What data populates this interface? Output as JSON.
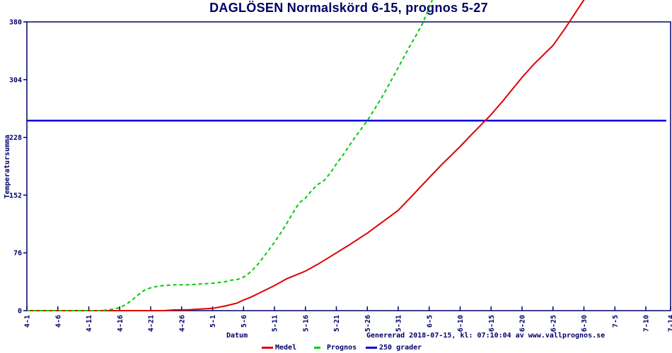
{
  "colors": {
    "navy": "#000066",
    "red": "#dd0000",
    "green": "#00cc00",
    "blue": "#0000dd",
    "background": "#ffffff"
  },
  "footer": {
    "generated": "Genererad 2018-07-15, kl: 07:10:04 av www.vallprognos.se"
  },
  "chart_data": {
    "type": "line",
    "title": "DAGLÖSEN Normalskörd 6-15, prognos 5-27",
    "xlabel": "Datum",
    "ylabel": "Temperatursumma",
    "x_axis_unit": "month-day, April 1 to July 14",
    "x_tick_labels": [
      "4-1",
      "4-6",
      "4-11",
      "4-16",
      "4-21",
      "4-26",
      "5-1",
      "5-6",
      "5-11",
      "5-16",
      "5-21",
      "5-26",
      "5-31",
      "6-5",
      "6-10",
      "6-15",
      "6-20",
      "6-25",
      "6-30",
      "7-5",
      "7-10",
      "7-14"
    ],
    "x_tick_days": [
      0,
      5,
      10,
      15,
      20,
      25,
      30,
      35,
      40,
      45,
      50,
      55,
      60,
      65,
      70,
      75,
      80,
      85,
      90,
      95,
      100,
      104
    ],
    "y_ticks": [
      0,
      76,
      152,
      228,
      304,
      380
    ],
    "ylim": [
      0,
      380
    ],
    "xlim_days": [
      0,
      104
    ],
    "grid": false,
    "legend_position": "bottom-center",
    "series": [
      {
        "name": "Medel",
        "color_key": "red",
        "style": "solid",
        "points": [
          [
            0,
            0
          ],
          [
            5,
            0
          ],
          [
            10,
            0
          ],
          [
            15,
            0
          ],
          [
            20,
            0
          ],
          [
            22,
            0
          ],
          [
            24,
            1
          ],
          [
            26,
            1
          ],
          [
            28,
            2
          ],
          [
            30,
            3
          ],
          [
            32,
            6
          ],
          [
            34,
            10
          ],
          [
            35,
            14
          ],
          [
            36,
            17
          ],
          [
            38,
            25
          ],
          [
            40,
            33
          ],
          [
            42,
            42
          ],
          [
            45,
            52
          ],
          [
            47,
            61
          ],
          [
            50,
            76
          ],
          [
            52,
            86
          ],
          [
            55,
            102
          ],
          [
            57,
            114
          ],
          [
            60,
            132
          ],
          [
            62,
            149
          ],
          [
            65,
            175
          ],
          [
            67,
            192
          ],
          [
            70,
            216
          ],
          [
            72,
            233
          ],
          [
            75,
            258
          ],
          [
            77,
            277
          ],
          [
            80,
            307
          ],
          [
            82,
            325
          ],
          [
            85,
            349
          ],
          [
            87,
            372
          ],
          [
            90,
            409
          ]
        ]
      },
      {
        "name": "Prognos",
        "color_key": "green",
        "style": "dashed",
        "points": [
          [
            0,
            0
          ],
          [
            5,
            0
          ],
          [
            10,
            0
          ],
          [
            12,
            0
          ],
          [
            13,
            1
          ],
          [
            14,
            2
          ],
          [
            15,
            4
          ],
          [
            16,
            8
          ],
          [
            17,
            14
          ],
          [
            18,
            21
          ],
          [
            19,
            27
          ],
          [
            20,
            30
          ],
          [
            21,
            32
          ],
          [
            22,
            33
          ],
          [
            24,
            34
          ],
          [
            26,
            34
          ],
          [
            28,
            35
          ],
          [
            30,
            36
          ],
          [
            31,
            37
          ],
          [
            32,
            38
          ],
          [
            33,
            40
          ],
          [
            34,
            41
          ],
          [
            35,
            44
          ],
          [
            36,
            50
          ],
          [
            37,
            58
          ],
          [
            38,
            68
          ],
          [
            39,
            79
          ],
          [
            40,
            90
          ],
          [
            41,
            102
          ],
          [
            42,
            115
          ],
          [
            43,
            129
          ],
          [
            44,
            142
          ],
          [
            45,
            148
          ],
          [
            46,
            158
          ],
          [
            47,
            166
          ],
          [
            48,
            171
          ],
          [
            49,
            181
          ],
          [
            50,
            193
          ],
          [
            51,
            204
          ],
          [
            52,
            216
          ],
          [
            53,
            228
          ],
          [
            54,
            239
          ],
          [
            55,
            250
          ],
          [
            56,
            263
          ],
          [
            57,
            276
          ],
          [
            58,
            290
          ],
          [
            59,
            305
          ],
          [
            60,
            320
          ],
          [
            61,
            335
          ],
          [
            62,
            350
          ],
          [
            63,
            364
          ],
          [
            64,
            379
          ],
          [
            65.5,
            409
          ]
        ]
      },
      {
        "name": "250 grader",
        "color_key": "blue",
        "style": "solid",
        "points": [
          [
            0,
            250
          ],
          [
            103.3,
            250
          ]
        ]
      }
    ],
    "annotations": {
      "reference_value": 250,
      "prognos_reaches_250": "5-26/5-27",
      "medel_reaches_250": "6-14/6-15"
    }
  }
}
